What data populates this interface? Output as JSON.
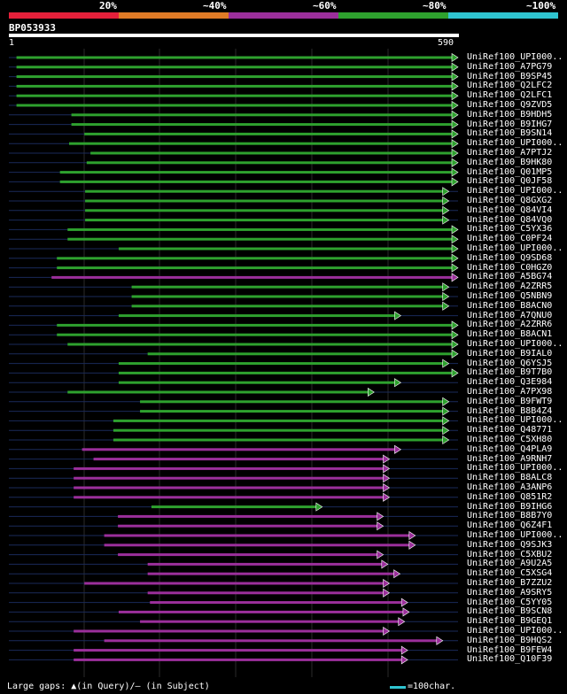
{
  "legend": {
    "items": [
      {
        "label": "20%",
        "color": "#e5203a"
      },
      {
        "label": "~40%",
        "color": "#e07b26"
      },
      {
        "label": "~60%",
        "color": "#9b2f9b"
      },
      {
        "label": "~80%",
        "color": "#2ea12e"
      },
      {
        "label": "~100%",
        "color": "#2fc4d0"
      }
    ]
  },
  "query": {
    "name": "BP053933",
    "start": "1",
    "end": "590"
  },
  "colors": {
    "green": "#2ea12e",
    "purple": "#9b2f9b",
    "cyan": "#2fc4d0",
    "track": "#1a2a5a"
  },
  "hits": [
    {
      "label": "UniRef100_UPI000..",
      "color": "green",
      "start": 11,
      "end": 590
    },
    {
      "label": "UniRef100_A7PG79",
      "color": "green",
      "start": 11,
      "end": 590
    },
    {
      "label": "UniRef100_B9SP45",
      "color": "green",
      "start": 11,
      "end": 590
    },
    {
      "label": "UniRef100_Q2LFC2",
      "color": "green",
      "start": 11,
      "end": 590
    },
    {
      "label": "UniRef100_Q2LFC1",
      "color": "green",
      "start": 11,
      "end": 590
    },
    {
      "label": "UniRef100_Q9ZVD5",
      "color": "green",
      "start": 11,
      "end": 590
    },
    {
      "label": "UniRef100_B9HDH5",
      "color": "green",
      "start": 83,
      "end": 590
    },
    {
      "label": "UniRef100_B9IHG7",
      "color": "green",
      "start": 83,
      "end": 590
    },
    {
      "label": "UniRef100_B9SN14",
      "color": "green",
      "start": 100,
      "end": 590
    },
    {
      "label": "UniRef100_UPI000..",
      "color": "green",
      "start": 80,
      "end": 590
    },
    {
      "label": "UniRef100_A7PTJ2",
      "color": "green",
      "start": 108,
      "end": 590
    },
    {
      "label": "UniRef100_B9HK80",
      "color": "green",
      "start": 103,
      "end": 590
    },
    {
      "label": "UniRef100_Q01MP5",
      "color": "green",
      "start": 68,
      "end": 590
    },
    {
      "label": "UniRef100_Q0JF58",
      "color": "green",
      "start": 68,
      "end": 590
    },
    {
      "label": "UniRef100_UPI000..",
      "color": "green",
      "start": 101,
      "end": 578
    },
    {
      "label": "UniRef100_Q8GXG2",
      "color": "green",
      "start": 101,
      "end": 578
    },
    {
      "label": "UniRef100_Q84VI4",
      "color": "green",
      "start": 101,
      "end": 578
    },
    {
      "label": "UniRef100_Q84VQ0",
      "color": "green",
      "start": 101,
      "end": 578
    },
    {
      "label": "UniRef100_C5YX36",
      "color": "green",
      "start": 78,
      "end": 590
    },
    {
      "label": "UniRef100_C0PF24",
      "color": "green",
      "start": 78,
      "end": 590
    },
    {
      "label": "UniRef100_UPI000..",
      "color": "green",
      "start": 145,
      "end": 590
    },
    {
      "label": "UniRef100_Q9SD68",
      "color": "green",
      "start": 64,
      "end": 590
    },
    {
      "label": "UniRef100_C0HGZ0",
      "color": "green",
      "start": 64,
      "end": 590
    },
    {
      "label": "UniRef100_A5BG74",
      "color": "purple",
      "start": 57,
      "end": 590
    },
    {
      "label": "UniRef100_A2ZRR5",
      "color": "green",
      "start": 162,
      "end": 578
    },
    {
      "label": "UniRef100_Q5NBN9",
      "color": "green",
      "start": 162,
      "end": 578
    },
    {
      "label": "UniRef100_B8ACN0",
      "color": "green",
      "start": 162,
      "end": 578
    },
    {
      "label": "UniRef100_A7QNU0",
      "color": "green",
      "start": 145,
      "end": 515
    },
    {
      "label": "UniRef100_A2ZRR6",
      "color": "green",
      "start": 64,
      "end": 590
    },
    {
      "label": "UniRef100_B8ACN1",
      "color": "green",
      "start": 64,
      "end": 590
    },
    {
      "label": "UniRef100_UPI000..",
      "color": "green",
      "start": 78,
      "end": 590
    },
    {
      "label": "UniRef100_B9IAL0",
      "color": "green",
      "start": 183,
      "end": 590
    },
    {
      "label": "UniRef100_Q6YSJ5",
      "color": "green",
      "start": 145,
      "end": 578
    },
    {
      "label": "UniRef100_B9T7B0",
      "color": "green",
      "start": 145,
      "end": 590
    },
    {
      "label": "UniRef100_Q3E984",
      "color": "green",
      "start": 145,
      "end": 515
    },
    {
      "label": "UniRef100_A7PX98",
      "color": "green",
      "start": 78,
      "end": 480
    },
    {
      "label": "UniRef100_B9FWT9",
      "color": "green",
      "start": 173,
      "end": 578
    },
    {
      "label": "UniRef100_B8B4Z4",
      "color": "green",
      "start": 173,
      "end": 578
    },
    {
      "label": "UniRef100_UPI000..",
      "color": "green",
      "start": 138,
      "end": 578
    },
    {
      "label": "UniRef100_Q48771",
      "color": "green",
      "start": 138,
      "end": 578
    },
    {
      "label": "UniRef100_C5XH80",
      "color": "green",
      "start": 138,
      "end": 578
    },
    {
      "label": "UniRef100_Q4PLA9",
      "color": "purple",
      "start": 97,
      "end": 515
    },
    {
      "label": "UniRef100_A9RNH7",
      "color": "purple",
      "start": 112,
      "end": 500
    },
    {
      "label": "UniRef100_UPI000..",
      "color": "purple",
      "start": 86,
      "end": 500
    },
    {
      "label": "UniRef100_B8ALC8",
      "color": "purple",
      "start": 86,
      "end": 500
    },
    {
      "label": "UniRef100_A3ANP6",
      "color": "purple",
      "start": 86,
      "end": 500
    },
    {
      "label": "UniRef100_Q851R2",
      "color": "purple",
      "start": 86,
      "end": 500
    },
    {
      "label": "UniRef100_B9IHG6",
      "color": "green",
      "start": 188,
      "end": 412
    },
    {
      "label": "UniRef100_B8B7Y0",
      "color": "purple",
      "start": 144,
      "end": 492
    },
    {
      "label": "UniRef100_Q6Z4F1",
      "color": "purple",
      "start": 144,
      "end": 492
    },
    {
      "label": "UniRef100_UPI000..",
      "color": "purple",
      "start": 126,
      "end": 534
    },
    {
      "label": "UniRef100_Q9SJK3",
      "color": "purple",
      "start": 126,
      "end": 534
    },
    {
      "label": "UniRef100_C5XBU2",
      "color": "purple",
      "start": 144,
      "end": 492
    },
    {
      "label": "UniRef100_A9U2A5",
      "color": "purple",
      "start": 183,
      "end": 498
    },
    {
      "label": "UniRef100_C5XSG4",
      "color": "purple",
      "start": 183,
      "end": 514
    },
    {
      "label": "UniRef100_B7ZZU2",
      "color": "purple",
      "start": 100,
      "end": 500
    },
    {
      "label": "UniRef100_A9SRY5",
      "color": "purple",
      "start": 183,
      "end": 500
    },
    {
      "label": "UniRef100_C5YY05",
      "color": "purple",
      "start": 186,
      "end": 524
    },
    {
      "label": "UniRef100_B9SCN8",
      "color": "purple",
      "start": 145,
      "end": 526
    },
    {
      "label": "UniRef100_B9GEQ1",
      "color": "purple",
      "start": 173,
      "end": 520
    },
    {
      "label": "UniRef100_UPI000..",
      "color": "purple",
      "start": 86,
      "end": 500
    },
    {
      "label": "UniRef100_B9HQS2",
      "color": "purple",
      "start": 126,
      "end": 570
    },
    {
      "label": "UniRef100_B9FEW4",
      "color": "purple",
      "start": 86,
      "end": 524
    },
    {
      "label": "UniRef100_Q10F39",
      "color": "purple",
      "start": 86,
      "end": 524
    }
  ],
  "footer": {
    "gaps_text": "Large gaps: ▲(in Query)/– (in Subject)",
    "scale_text": "=100char."
  }
}
